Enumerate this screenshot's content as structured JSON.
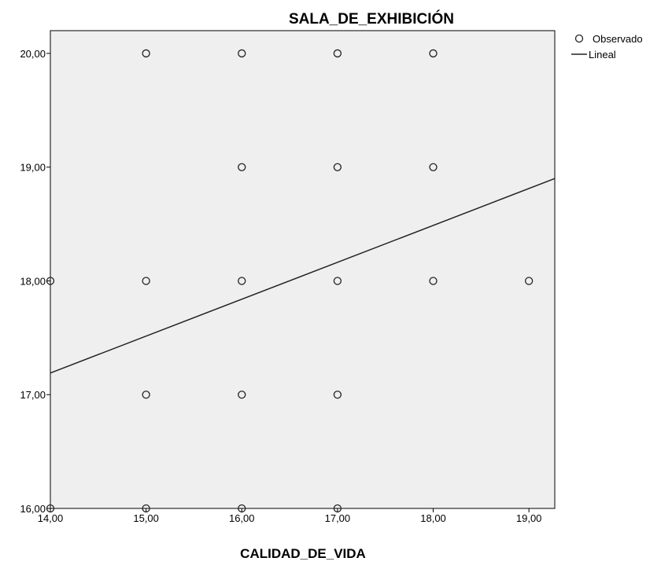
{
  "chart_data": {
    "type": "scatter",
    "title": "SALA_DE_EXHIBICIÓN",
    "xlabel": "CALIDAD_DE_VIDA",
    "ylabel": "",
    "xlim": [
      14,
      19.27
    ],
    "ylim": [
      16,
      20.2
    ],
    "x_ticks": [
      {
        "value": 14,
        "label": "14,00"
      },
      {
        "value": 15,
        "label": "15,00"
      },
      {
        "value": 16,
        "label": "16,00"
      },
      {
        "value": 17,
        "label": "17,00"
      },
      {
        "value": 18,
        "label": "18,00"
      },
      {
        "value": 19,
        "label": "19,00"
      }
    ],
    "y_ticks": [
      {
        "value": 16,
        "label": "16,00"
      },
      {
        "value": 17,
        "label": "17,00"
      },
      {
        "value": 18,
        "label": "18,00"
      },
      {
        "value": 19,
        "label": "19,00"
      },
      {
        "value": 20,
        "label": "20,00"
      }
    ],
    "grid": false,
    "legend_position": "right",
    "series": [
      {
        "name": "Observado",
        "kind": "points",
        "points": [
          [
            15,
            20
          ],
          [
            16,
            20
          ],
          [
            17,
            20
          ],
          [
            18,
            20
          ],
          [
            16,
            19
          ],
          [
            17,
            19
          ],
          [
            18,
            19
          ],
          [
            14,
            18
          ],
          [
            15,
            18
          ],
          [
            16,
            18
          ],
          [
            17,
            18
          ],
          [
            18,
            18
          ],
          [
            19,
            18
          ],
          [
            15,
            17
          ],
          [
            16,
            17
          ],
          [
            17,
            17
          ],
          [
            14,
            16
          ],
          [
            15,
            16
          ],
          [
            16,
            16
          ],
          [
            17,
            16
          ]
        ]
      },
      {
        "name": "Lineal",
        "kind": "line",
        "points": [
          [
            14,
            17.19
          ],
          [
            19.27,
            18.9
          ]
        ]
      }
    ],
    "colors": {
      "plot_background": "#efefef",
      "marker_stroke": "#222222",
      "line": "#222222"
    }
  }
}
